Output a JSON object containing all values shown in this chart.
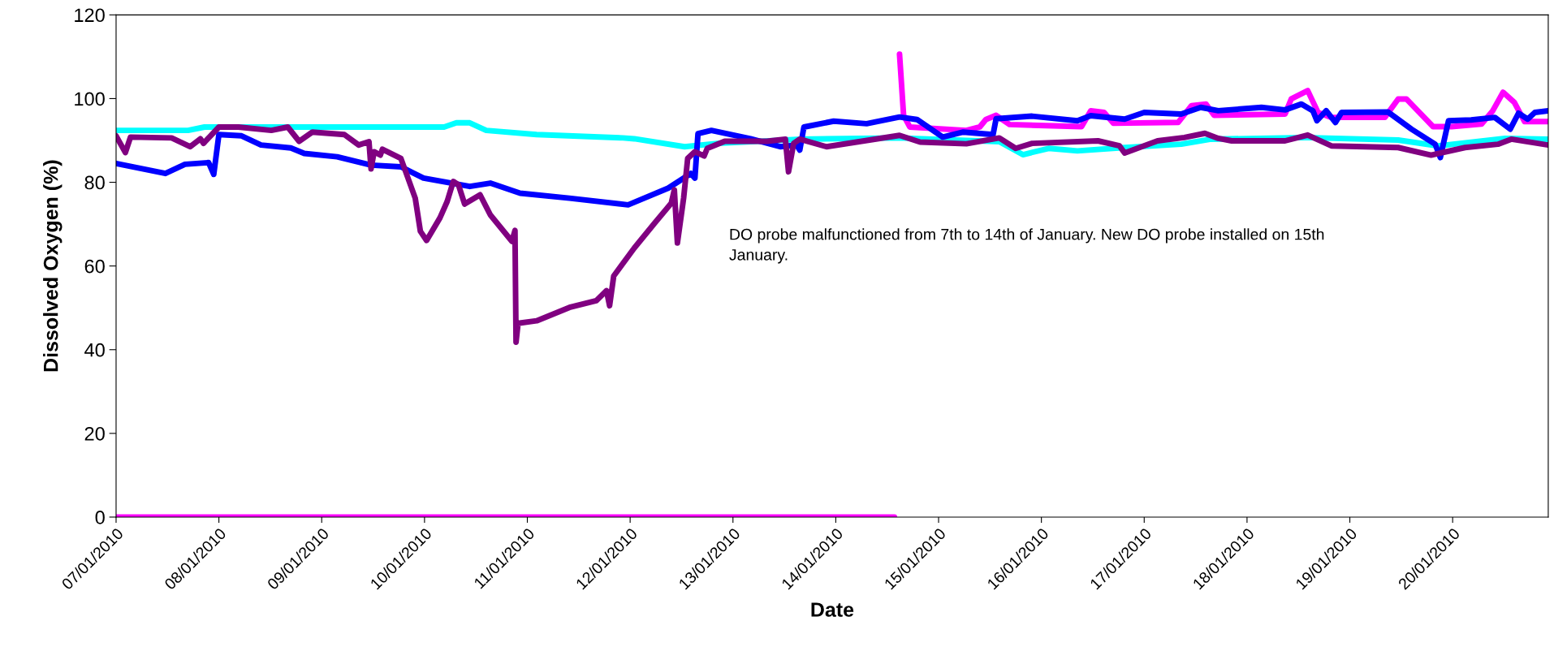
{
  "chart_data": {
    "type": "line",
    "xlabel": "Date",
    "ylabel": "Dissolved Oxygen (%)",
    "xlim": [
      "2010-01-07T00:00",
      "2010-01-20T22:19"
    ],
    "xticks": [
      {
        "value": "2010-01-07",
        "label": "07/01/2010"
      },
      {
        "value": "2010-01-08",
        "label": "08/01/2010"
      },
      {
        "value": "2010-01-09",
        "label": "09/01/2010"
      },
      {
        "value": "2010-01-10",
        "label": "10/01/2010"
      },
      {
        "value": "2010-01-11",
        "label": "11/01/2010"
      },
      {
        "value": "2010-01-12",
        "label": "12/01/2010"
      },
      {
        "value": "2010-01-13",
        "label": "13/01/2010"
      },
      {
        "value": "2010-01-14",
        "label": "14/01/2010"
      },
      {
        "value": "2010-01-15",
        "label": "15/01/2010"
      },
      {
        "value": "2010-01-16",
        "label": "16/01/2010"
      },
      {
        "value": "2010-01-17",
        "label": "17/01/2010"
      },
      {
        "value": "2010-01-18",
        "label": "18/01/2010"
      },
      {
        "value": "2010-01-19",
        "label": "19/01/2010"
      },
      {
        "value": "2010-01-20",
        "label": "20/01/2010"
      }
    ],
    "ylim": [
      0,
      120
    ],
    "yticks": [
      0,
      20,
      40,
      60,
      80,
      100,
      120
    ],
    "grid": false,
    "marker": "none",
    "line_style": "solid",
    "annotations": [
      "DO probe malfunctioned from 7th to 14th of January. New DO probe installed on 15th\nJanuary."
    ],
    "series": [
      {
        "color": "#00ffff",
        "x": [
          "2010-01-07T00:00",
          "2010-01-07T16:48",
          "2010-01-07T20:38",
          "2010-01-10T04:34",
          "2010-01-10T07:26",
          "2010-01-10T10:34",
          "2010-01-10T14:24",
          "2010-01-11T02:10",
          "2010-01-11T22:19",
          "2010-01-12T00:58",
          "2010-01-12T12:43",
          "2010-01-12T20:24",
          "2010-01-13T15:50",
          "2010-01-14T14:53",
          "2010-01-15T14:10",
          "2010-01-15T19:41",
          "2010-01-16T01:41",
          "2010-01-16T08:24",
          "2010-01-16T19:26",
          "2010-01-17T08:38",
          "2010-01-17T15:36",
          "2010-01-18T13:26",
          "2010-01-19T11:17",
          "2010-01-19T20:38",
          "2010-01-20T12:14",
          "2010-01-20T22:19"
        ],
        "values": [
          92.4,
          92.4,
          93.2,
          93.2,
          94.2,
          94.2,
          92.4,
          91.4,
          90.6,
          90.4,
          88.5,
          89.3,
          90.3,
          90.6,
          89.7,
          86.6,
          88.1,
          87.5,
          88.3,
          89.1,
          90.3,
          90.7,
          90.1,
          88.7,
          90.5,
          90.3
        ]
      },
      {
        "color": "#ff00ff",
        "x": [
          "2010-01-07T00:00",
          "2010-01-14T13:41",
          "2010-01-14T14:00",
          "2010-01-14T14:53",
          "2010-01-14T15:50",
          "2010-01-14T17:17",
          "2010-01-15T06:29",
          "2010-01-15T09:36",
          "2010-01-15T11:02",
          "2010-01-15T13:26",
          "2010-01-15T16:34",
          "2010-01-16T09:22",
          "2010-01-16T11:31",
          "2010-01-16T14:38",
          "2010-01-16T16:48",
          "2010-01-17T07:55",
          "2010-01-17T11:02",
          "2010-01-17T14:24",
          "2010-01-17T16:19",
          "2010-01-18T08:53",
          "2010-01-18T10:19",
          "2010-01-18T14:10",
          "2010-01-18T16:34",
          "2010-01-18T19:41",
          "2010-01-19T08:10",
          "2010-01-19T11:17",
          "2010-01-19T13:12",
          "2010-01-19T19:26",
          "2010-01-19T23:46",
          "2010-01-20T06:43",
          "2010-01-20T09:22",
          "2010-01-20T11:46",
          "2010-01-20T14:24",
          "2010-01-20T16:48",
          "2010-01-20T22:19"
        ],
        "values": [
          0,
          0,
          null,
          110.6,
          96.0,
          93.2,
          92.4,
          93.2,
          95.0,
          96.0,
          93.8,
          93.3,
          97.1,
          96.7,
          94.1,
          94.3,
          98.3,
          98.7,
          96.0,
          96.3,
          99.9,
          101.9,
          96.7,
          95.5,
          95.5,
          99.9,
          99.9,
          93.3,
          93.3,
          93.9,
          97.1,
          101.5,
          99.1,
          94.5,
          94.5
        ]
      },
      {
        "color": "#0000ff",
        "x": [
          "2010-01-07T00:00",
          "2010-01-07T11:31",
          "2010-01-07T16:05",
          "2010-01-07T21:36",
          "2010-01-07T22:48",
          "2010-01-08T00:00",
          "2010-01-08T05:17",
          "2010-01-08T09:50",
          "2010-01-08T16:48",
          "2010-01-08T19:55",
          "2010-01-09T03:36",
          "2010-01-09T11:31",
          "2010-01-09T18:29",
          "2010-01-09T23:46",
          "2010-01-10T10:34",
          "2010-01-10T15:22",
          "2010-01-10T22:19",
          "2010-01-11T09:50",
          "2010-01-11T23:31",
          "2010-01-12T08:53",
          "2010-01-12T14:10",
          "2010-01-12T15:07",
          "2010-01-12T15:50",
          "2010-01-12T18:58",
          "2010-01-13T04:05",
          "2010-01-13T11:02",
          "2010-01-13T14:53",
          "2010-01-13T15:36",
          "2010-01-13T16:34",
          "2010-01-13T23:31",
          "2010-01-14T07:12",
          "2010-01-14T14:53",
          "2010-01-14T18:58",
          "2010-01-15T00:58",
          "2010-01-15T05:46",
          "2010-01-15T12:43",
          "2010-01-15T13:26",
          "2010-01-15T21:50",
          "2010-01-16T08:24",
          "2010-01-16T11:31",
          "2010-01-16T19:26",
          "2010-01-17T00:00",
          "2010-01-17T08:38",
          "2010-01-17T13:12",
          "2010-01-17T17:17",
          "2010-01-18T03:22",
          "2010-01-18T08:53",
          "2010-01-18T12:43",
          "2010-01-18T15:22",
          "2010-01-18T16:19",
          "2010-01-18T18:29",
          "2010-01-18T20:38",
          "2010-01-18T22:05",
          "2010-01-19T08:53",
          "2010-01-19T14:24",
          "2010-01-19T19:55",
          "2010-01-19T21:07",
          "2010-01-19T23:02",
          "2010-01-20T04:19",
          "2010-01-20T09:50",
          "2010-01-20T13:26",
          "2010-01-20T15:22",
          "2010-01-20T17:31",
          "2010-01-20T19:12",
          "2010-01-20T22:19"
        ],
        "values": [
          84.5,
          82.1,
          84.3,
          84.7,
          81.9,
          91.4,
          91.1,
          88.9,
          88.2,
          86.9,
          86.1,
          84.1,
          83.7,
          81.0,
          79.0,
          79.8,
          77.4,
          76.2,
          74.6,
          78.6,
          82.1,
          81.0,
          91.6,
          92.4,
          90.4,
          88.5,
          88.9,
          87.7,
          93.2,
          94.6,
          94.0,
          95.6,
          95.0,
          90.8,
          92.0,
          91.4,
          95.2,
          95.8,
          94.7,
          95.9,
          95.1,
          96.7,
          96.3,
          97.9,
          97.1,
          97.9,
          97.3,
          98.7,
          97.1,
          94.7,
          97.1,
          94.3,
          96.7,
          96.8,
          92.7,
          89.1,
          85.9,
          94.7,
          94.9,
          95.5,
          92.7,
          96.5,
          95.1,
          96.7,
          97.1
        ]
      },
      {
        "color": "#800080",
        "x": [
          "2010-01-07T00:00",
          "2010-01-07T02:10",
          "2010-01-07T03:22",
          "2010-01-07T12:58",
          "2010-01-07T17:17",
          "2010-01-07T19:41",
          "2010-01-07T20:24",
          "2010-01-08T00:00",
          "2010-01-08T04:34",
          "2010-01-08T12:14",
          "2010-01-08T16:05",
          "2010-01-08T18:43",
          "2010-01-08T21:50",
          "2010-01-09T05:17",
          "2010-01-09T08:38",
          "2010-01-09T11:02",
          "2010-01-09T11:31",
          "2010-01-09T12:14",
          "2010-01-09T13:41",
          "2010-01-09T14:10",
          "2010-01-09T18:29",
          "2010-01-09T21:50",
          "2010-01-09T23:02",
          "2010-01-10T00:29",
          "2010-01-10T03:36",
          "2010-01-10T05:17",
          "2010-01-10T06:43",
          "2010-01-10T07:55",
          "2010-01-10T09:22",
          "2010-01-10T12:58",
          "2010-01-10T15:22",
          "2010-01-10T20:24",
          "2010-01-10T21:07",
          "2010-01-10T21:22",
          "2010-01-10T21:50",
          "2010-01-11T02:10",
          "2010-01-11T09:50",
          "2010-01-11T16:05",
          "2010-01-11T18:29",
          "2010-01-11T19:12",
          "2010-01-11T20:10",
          "2010-01-12T00:58",
          "2010-01-12T05:46",
          "2010-01-12T09:36",
          "2010-01-12T10:19",
          "2010-01-12T11:02",
          "2010-01-12T12:29",
          "2010-01-12T13:26",
          "2010-01-12T15:07",
          "2010-01-12T17:17",
          "2010-01-12T18:00",
          "2010-01-12T22:05",
          "2010-01-13T07:55",
          "2010-01-13T12:14",
          "2010-01-13T12:58",
          "2010-01-13T14:10",
          "2010-01-13T15:36",
          "2010-01-13T21:50",
          "2010-01-14T14:53",
          "2010-01-14T19:41",
          "2010-01-15T06:29",
          "2010-01-15T14:10",
          "2010-01-15T18:00",
          "2010-01-15T21:50",
          "2010-01-16T13:12",
          "2010-01-16T18:14",
          "2010-01-16T19:26",
          "2010-01-17T03:07",
          "2010-01-17T09:22",
          "2010-01-17T14:10",
          "2010-01-17T17:17",
          "2010-01-17T20:24",
          "2010-01-18T08:53",
          "2010-01-18T14:10",
          "2010-01-18T19:41",
          "2010-01-19T11:17",
          "2010-01-19T18:58",
          "2010-01-20T02:53",
          "2010-01-20T10:34",
          "2010-01-20T13:41",
          "2010-01-20T22:19"
        ],
        "values": [
          91.1,
          87.1,
          90.8,
          90.6,
          88.5,
          90.4,
          89.3,
          93.2,
          93.2,
          92.4,
          93.2,
          89.8,
          92.0,
          91.4,
          88.9,
          89.7,
          83.2,
          87.3,
          86.5,
          87.9,
          85.7,
          76.2,
          68.3,
          66.1,
          71.5,
          75.4,
          80.2,
          79.4,
          74.8,
          77.0,
          72.2,
          65.9,
          68.5,
          41.8,
          46.3,
          46.9,
          50.1,
          51.7,
          54.1,
          50.5,
          57.6,
          64.3,
          70.3,
          75.0,
          78.2,
          65.5,
          76.2,
          85.7,
          87.3,
          86.3,
          88.1,
          89.8,
          89.8,
          90.3,
          82.5,
          89.3,
          90.3,
          88.5,
          91.2,
          89.6,
          89.2,
          90.6,
          88.1,
          89.3,
          89.9,
          88.7,
          87.0,
          89.9,
          90.7,
          91.7,
          90.5,
          89.9,
          89.9,
          91.3,
          88.7,
          88.3,
          86.5,
          88.3,
          89.1,
          90.3,
          88.9
        ]
      }
    ]
  }
}
